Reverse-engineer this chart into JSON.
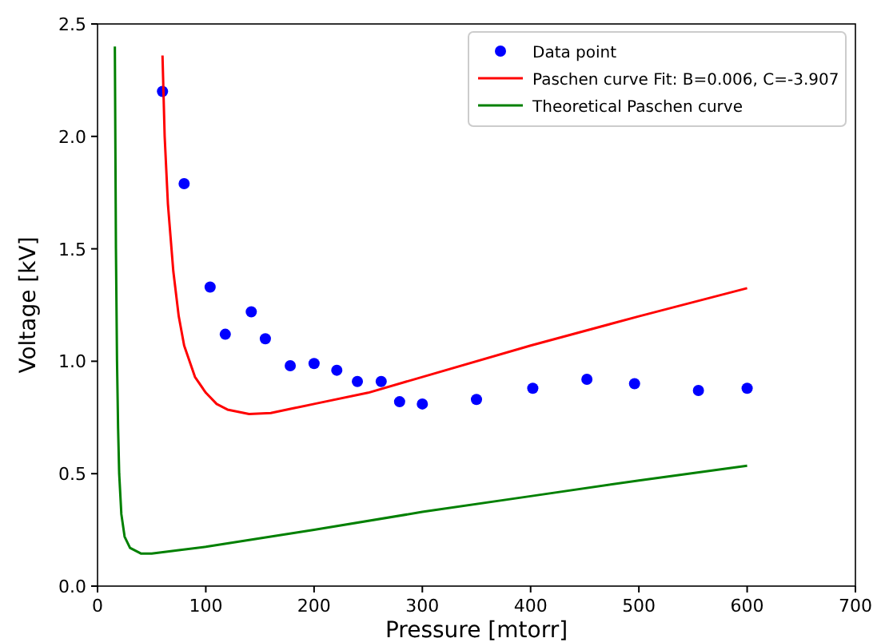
{
  "chart_data": {
    "type": "scatter",
    "xlabel": "Pressure [mtorr]",
    "ylabel": "Voltage [kV]",
    "xlim": [
      0,
      700
    ],
    "ylim": [
      0,
      2.5
    ],
    "xticks": [
      0,
      100,
      200,
      300,
      400,
      500,
      600,
      700
    ],
    "yticks": [
      {
        "value": 0,
        "label": "0.0"
      },
      0.5,
      {
        "value": 1,
        "label": "1.0"
      },
      1.5,
      {
        "value": 2,
        "label": "2.0"
      },
      2.5
    ],
    "legend": "top right",
    "grid": false,
    "series": [
      {
        "name": "Data point",
        "marker": "circle",
        "color": "#0000ff",
        "x": [
          60,
          80,
          104,
          118,
          142,
          155,
          178,
          200,
          221,
          240,
          262,
          279,
          300,
          350,
          402,
          452,
          496,
          555,
          600
        ],
        "values": [
          2.2,
          1.79,
          1.33,
          1.12,
          1.22,
          1.1,
          0.98,
          0.99,
          0.96,
          0.91,
          0.91,
          0.82,
          0.81,
          0.83,
          0.88,
          0.92,
          0.9,
          0.87,
          0.88
        ]
      },
      {
        "name": "Paschen curve Fit: B=0.006, C=-3.907",
        "type": "line",
        "color": "#ff0000",
        "x": [
          60,
          62,
          65,
          70,
          75,
          80,
          90,
          100,
          110,
          120,
          140,
          160,
          180,
          200,
          250,
          300,
          400,
          500,
          600
        ],
        "values": [
          2.36,
          2.0,
          1.7,
          1.4,
          1.2,
          1.07,
          0.93,
          0.86,
          0.81,
          0.785,
          0.765,
          0.77,
          0.79,
          0.81,
          0.86,
          0.93,
          1.07,
          1.2,
          1.325
        ]
      },
      {
        "name": "Theoretical Paschen curve",
        "type": "line",
        "color": "#008000",
        "x": [
          16,
          17,
          18,
          19,
          20,
          22,
          25,
          30,
          40,
          50,
          75,
          100,
          200,
          300,
          400,
          500,
          600
        ],
        "values": [
          2.4,
          1.5,
          1.0,
          0.7,
          0.5,
          0.32,
          0.22,
          0.17,
          0.145,
          0.145,
          0.16,
          0.175,
          0.25,
          0.33,
          0.4,
          0.47,
          0.535
        ]
      }
    ]
  }
}
